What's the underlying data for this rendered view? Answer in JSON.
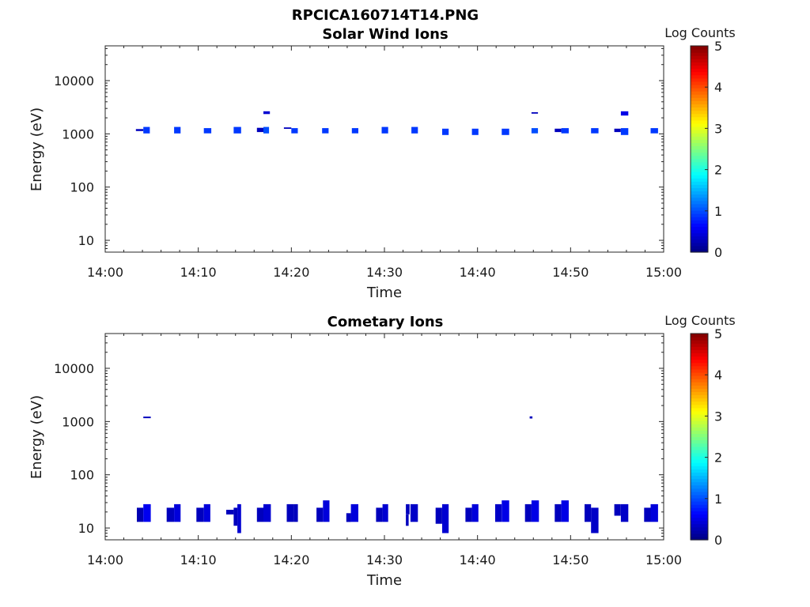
{
  "figure": {
    "title": "RPCICA160714T14.PNG"
  },
  "chart_data": [
    {
      "type": "heatmap",
      "title": "Solar Wind Ions",
      "xlabel": "Time",
      "ylabel": "Energy (eV)",
      "xlim": [
        "14:00",
        "15:00"
      ],
      "xticks": [
        "14:00",
        "14:10",
        "14:20",
        "14:30",
        "14:40",
        "14:50",
        "15:00"
      ],
      "ylim": [
        6,
        45000
      ],
      "yscale": "log",
      "yticks": [
        10,
        100,
        1000,
        10000
      ],
      "yticklabels": [
        "10",
        "100",
        "1000",
        "10000"
      ],
      "colorbar": {
        "label": "Log Counts",
        "range": [
          0,
          5
        ],
        "ticks": [
          "0",
          "1",
          "2",
          "3",
          "4",
          "5"
        ],
        "colormap": "jet"
      },
      "cells": [
        {
          "t0": 3.3,
          "t1": 4.1,
          "e0": 1130,
          "e1": 1230,
          "v": 0.3
        },
        {
          "t0": 4.1,
          "t1": 4.8,
          "e0": 1020,
          "e1": 1350,
          "v": 0.9
        },
        {
          "t0": 7.4,
          "t1": 8.1,
          "e0": 1020,
          "e1": 1350,
          "v": 0.9
        },
        {
          "t0": 10.6,
          "t1": 11.4,
          "e0": 1020,
          "e1": 1280,
          "v": 0.9
        },
        {
          "t0": 13.8,
          "t1": 14.6,
          "e0": 1020,
          "e1": 1350,
          "v": 0.9
        },
        {
          "t0": 16.3,
          "t1": 17.0,
          "e0": 1080,
          "e1": 1300,
          "v": 0.3
        },
        {
          "t0": 17.0,
          "t1": 17.6,
          "e0": 1020,
          "e1": 1350,
          "v": 1.0
        },
        {
          "t0": 17.0,
          "t1": 17.7,
          "e0": 2350,
          "e1": 2650,
          "v": 0.4
        },
        {
          "t0": 19.2,
          "t1": 20.0,
          "e0": 1240,
          "e1": 1320,
          "v": 0.3
        },
        {
          "t0": 20.0,
          "t1": 20.7,
          "e0": 1020,
          "e1": 1280,
          "v": 0.9
        },
        {
          "t0": 23.3,
          "t1": 24.0,
          "e0": 1020,
          "e1": 1280,
          "v": 0.9
        },
        {
          "t0": 26.5,
          "t1": 27.2,
          "e0": 1020,
          "e1": 1280,
          "v": 0.9
        },
        {
          "t0": 29.7,
          "t1": 30.4,
          "e0": 1020,
          "e1": 1350,
          "v": 0.9
        },
        {
          "t0": 32.9,
          "t1": 33.6,
          "e0": 1020,
          "e1": 1350,
          "v": 0.9
        },
        {
          "t0": 36.2,
          "t1": 36.9,
          "e0": 950,
          "e1": 1250,
          "v": 0.9
        },
        {
          "t0": 39.4,
          "t1": 40.1,
          "e0": 950,
          "e1": 1250,
          "v": 0.9
        },
        {
          "t0": 42.6,
          "t1": 43.4,
          "e0": 950,
          "e1": 1250,
          "v": 0.9
        },
        {
          "t0": 45.8,
          "t1": 46.5,
          "e0": 1020,
          "e1": 1280,
          "v": 1.0
        },
        {
          "t0": 45.8,
          "t1": 46.5,
          "e0": 2400,
          "e1": 2550,
          "v": 0.3
        },
        {
          "t0": 48.3,
          "t1": 49.0,
          "e0": 1080,
          "e1": 1250,
          "v": 0.3
        },
        {
          "t0": 49.0,
          "t1": 49.8,
          "e0": 1020,
          "e1": 1280,
          "v": 0.9
        },
        {
          "t0": 52.2,
          "t1": 53.0,
          "e0": 1020,
          "e1": 1280,
          "v": 0.9
        },
        {
          "t0": 54.7,
          "t1": 55.4,
          "e0": 1080,
          "e1": 1250,
          "v": 0.3
        },
        {
          "t0": 55.4,
          "t1": 56.2,
          "e0": 950,
          "e1": 1280,
          "v": 0.9
        },
        {
          "t0": 55.4,
          "t1": 56.2,
          "e0": 2200,
          "e1": 2650,
          "v": 0.5
        },
        {
          "t0": 58.6,
          "t1": 59.4,
          "e0": 1020,
          "e1": 1280,
          "v": 0.9
        }
      ]
    },
    {
      "type": "heatmap",
      "title": "Cometary Ions",
      "xlabel": "Time",
      "ylabel": "Energy (eV)",
      "xlim": [
        "14:00",
        "15:00"
      ],
      "xticks": [
        "14:00",
        "14:10",
        "14:20",
        "14:30",
        "14:40",
        "14:50",
        "15:00"
      ],
      "ylim": [
        6,
        45000
      ],
      "yscale": "log",
      "yticks": [
        10,
        100,
        1000,
        10000
      ],
      "yticklabels": [
        "10",
        "100",
        "1000",
        "10000"
      ],
      "colorbar": {
        "label": "Log Counts",
        "range": [
          0,
          5
        ],
        "ticks": [
          "0",
          "1",
          "2",
          "3",
          "4",
          "5"
        ],
        "colormap": "jet"
      },
      "cells": [
        {
          "t0": 4.1,
          "t1": 4.9,
          "e0": 1160,
          "e1": 1240,
          "v": 0.3
        },
        {
          "t0": 45.6,
          "t1": 45.9,
          "e0": 1140,
          "e1": 1250,
          "v": 0.3
        },
        {
          "t0": 3.4,
          "t1": 4.1,
          "e0": 13,
          "e1": 24,
          "v": 0.25
        },
        {
          "t0": 4.1,
          "t1": 4.9,
          "e0": 13,
          "e1": 28,
          "v": 0.55
        },
        {
          "t0": 6.6,
          "t1": 7.4,
          "e0": 13,
          "e1": 24,
          "v": 0.3
        },
        {
          "t0": 7.4,
          "t1": 8.1,
          "e0": 13,
          "e1": 28,
          "v": 0.45
        },
        {
          "t0": 9.8,
          "t1": 10.6,
          "e0": 13,
          "e1": 24,
          "v": 0.3
        },
        {
          "t0": 10.6,
          "t1": 11.3,
          "e0": 13,
          "e1": 28,
          "v": 0.45
        },
        {
          "t0": 13.0,
          "t1": 13.8,
          "e0": 18,
          "e1": 22,
          "v": 0.3
        },
        {
          "t0": 13.8,
          "t1": 14.2,
          "e0": 11,
          "e1": 24,
          "v": 0.3
        },
        {
          "t0": 14.2,
          "t1": 14.6,
          "e0": 8,
          "e1": 28,
          "v": 0.4
        },
        {
          "t0": 16.3,
          "t1": 17.0,
          "e0": 13,
          "e1": 24,
          "v": 0.3
        },
        {
          "t0": 17.0,
          "t1": 17.8,
          "e0": 13,
          "e1": 28,
          "v": 0.4
        },
        {
          "t0": 19.5,
          "t1": 20.3,
          "e0": 13,
          "e1": 28,
          "v": 0.3
        },
        {
          "t0": 20.3,
          "t1": 20.7,
          "e0": 13,
          "e1": 28,
          "v": 0.3
        },
        {
          "t0": 22.7,
          "t1": 23.4,
          "e0": 13,
          "e1": 24,
          "v": 0.3
        },
        {
          "t0": 23.4,
          "t1": 24.1,
          "e0": 13,
          "e1": 33,
          "v": 0.45
        },
        {
          "t0": 25.9,
          "t1": 26.4,
          "e0": 13,
          "e1": 19,
          "v": 0.3
        },
        {
          "t0": 26.4,
          "t1": 27.2,
          "e0": 13,
          "e1": 28,
          "v": 0.45
        },
        {
          "t0": 29.1,
          "t1": 29.8,
          "e0": 13,
          "e1": 24,
          "v": 0.3
        },
        {
          "t0": 29.8,
          "t1": 30.4,
          "e0": 13,
          "e1": 28,
          "v": 0.4
        },
        {
          "t0": 32.3,
          "t1": 32.7,
          "e0": 18,
          "e1": 28,
          "v": 0.3
        },
        {
          "t0": 32.3,
          "t1": 32.6,
          "e0": 11,
          "e1": 18,
          "v": 0.3
        },
        {
          "t0": 32.8,
          "t1": 33.6,
          "e0": 13,
          "e1": 28,
          "v": 0.35
        },
        {
          "t0": 35.5,
          "t1": 36.2,
          "e0": 12,
          "e1": 24,
          "v": 0.3
        },
        {
          "t0": 36.2,
          "t1": 36.9,
          "e0": 8,
          "e1": 28,
          "v": 0.4
        },
        {
          "t0": 38.7,
          "t1": 39.4,
          "e0": 13,
          "e1": 24,
          "v": 0.3
        },
        {
          "t0": 39.4,
          "t1": 40.1,
          "e0": 13,
          "e1": 28,
          "v": 0.45
        },
        {
          "t0": 41.9,
          "t1": 42.6,
          "e0": 13,
          "e1": 28,
          "v": 0.35
        },
        {
          "t0": 42.6,
          "t1": 43.4,
          "e0": 13,
          "e1": 33,
          "v": 0.5
        },
        {
          "t0": 45.1,
          "t1": 45.8,
          "e0": 13,
          "e1": 28,
          "v": 0.3
        },
        {
          "t0": 45.8,
          "t1": 46.6,
          "e0": 13,
          "e1": 33,
          "v": 0.5
        },
        {
          "t0": 48.3,
          "t1": 49.0,
          "e0": 13,
          "e1": 28,
          "v": 0.3
        },
        {
          "t0": 49.0,
          "t1": 49.8,
          "e0": 13,
          "e1": 33,
          "v": 0.5
        },
        {
          "t0": 51.5,
          "t1": 52.2,
          "e0": 13,
          "e1": 28,
          "v": 0.3
        },
        {
          "t0": 52.2,
          "t1": 53.0,
          "e0": 8,
          "e1": 24,
          "v": 0.35
        },
        {
          "t0": 54.7,
          "t1": 55.4,
          "e0": 17,
          "e1": 28,
          "v": 0.3
        },
        {
          "t0": 55.4,
          "t1": 56.2,
          "e0": 13,
          "e1": 28,
          "v": 0.35
        },
        {
          "t0": 57.9,
          "t1": 58.6,
          "e0": 13,
          "e1": 24,
          "v": 0.3
        },
        {
          "t0": 58.6,
          "t1": 59.4,
          "e0": 13,
          "e1": 28,
          "v": 0.45
        }
      ]
    }
  ]
}
